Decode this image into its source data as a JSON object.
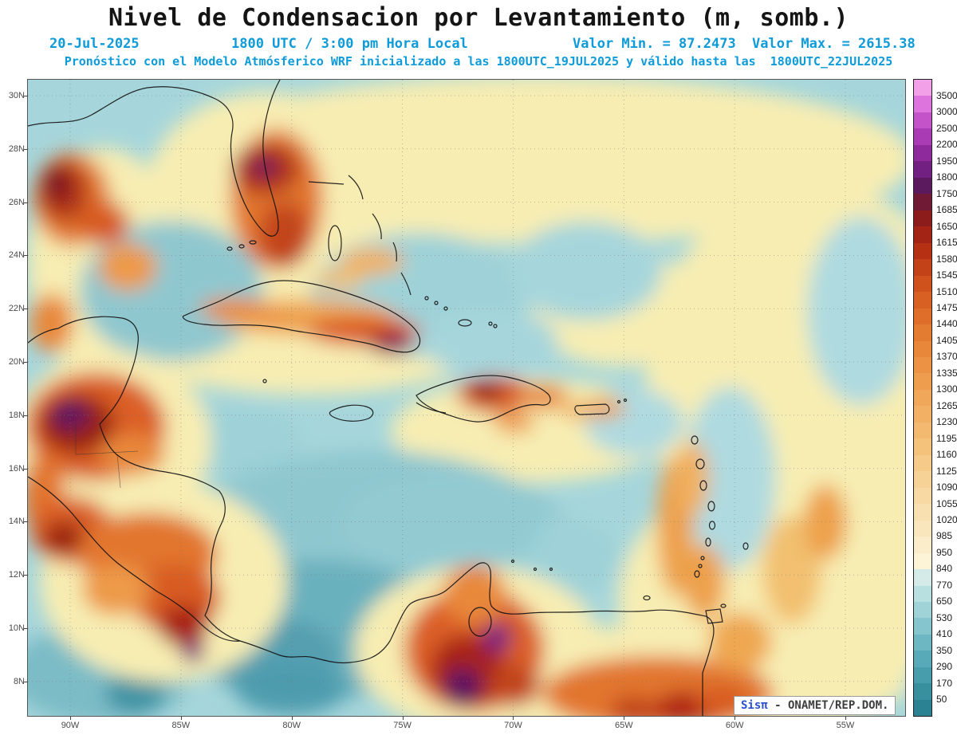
{
  "title": "Nivel de Condensacion por Levantamiento (m, somb.)",
  "header": {
    "date": "20-Jul-2025",
    "time": "1800 UTC / 3:00 pm Hora Local",
    "min": "Valor Min. = 87.2473",
    "max": "Valor Max. = 2615.38",
    "subtitle": "Pronóstico con el Modelo Atmósferico WRF inicializado a las 1800UTC_19JUL2025 y válido hasta las  1800UTC_22JUL2025"
  },
  "watermark": {
    "brand": "Sisπ",
    "text": " - ONAMET/REP.DOM."
  },
  "colors": {
    "header_blue": "#0d9bd9",
    "watermark_blue": "#2a4fd0",
    "watermark_gray": "#3f3f3f"
  },
  "chart_data": {
    "type": "heatmap",
    "title": "Nivel de Condensacion por Levantamiento (m, somb.)",
    "units": "m",
    "valor_min": 87.2473,
    "valor_max": 2615.38,
    "model": "WRF",
    "init_time": "1800UTC_19JUL2025",
    "valid_until": "1800UTC_22JUL2025",
    "forecast_time": "1800 UTC / 3:00 pm Hora Local",
    "forecast_date": "20-Jul-2025",
    "legend_position": "right",
    "grid": "dotted, 2° latitude x 5° longitude",
    "lat_ticks": [
      "30N",
      "28N",
      "26N",
      "24N",
      "22N",
      "20N",
      "18N",
      "16N",
      "14N",
      "12N",
      "10N",
      "8N"
    ],
    "lon_ticks": [
      "90W",
      "85W",
      "80W",
      "75W",
      "70W",
      "65W",
      "60W",
      "55W"
    ],
    "colorbar": {
      "labels": [
        3500,
        3000,
        2500,
        2200,
        1950,
        1800,
        1750,
        1685,
        1650,
        1615,
        1580,
        1545,
        1510,
        1475,
        1440,
        1405,
        1370,
        1335,
        1300,
        1265,
        1230,
        1195,
        1160,
        1125,
        1090,
        1055,
        1020,
        985,
        950,
        840,
        770,
        650,
        530,
        410,
        350,
        290,
        170,
        50
      ],
      "colors_top_to_bottom": [
        "#f2a0e8",
        "#dd74dd",
        "#c452c8",
        "#a93bb5",
        "#8e2a9c",
        "#722081",
        "#5c1a5e",
        "#711a35",
        "#8c1b1b",
        "#a32315",
        "#b63114",
        "#c44217",
        "#cf521c",
        "#d76022",
        "#de6e29",
        "#e37b31",
        "#e8873a",
        "#ec9244",
        "#ee9d4e",
        "#f0a759",
        "#f2b064",
        "#f3b970",
        "#f5c27c",
        "#f6ca89",
        "#f7d296",
        "#f8d9a3",
        "#f9e0b0",
        "#fae6bd",
        "#fbecca",
        "#fdf4d8",
        "#d4ebe8",
        "#b9e0e0",
        "#9fd3d8",
        "#85c5ce",
        "#6db7c3",
        "#59aab8",
        "#489dad",
        "#38909f",
        "#2a8292"
      ]
    }
  }
}
